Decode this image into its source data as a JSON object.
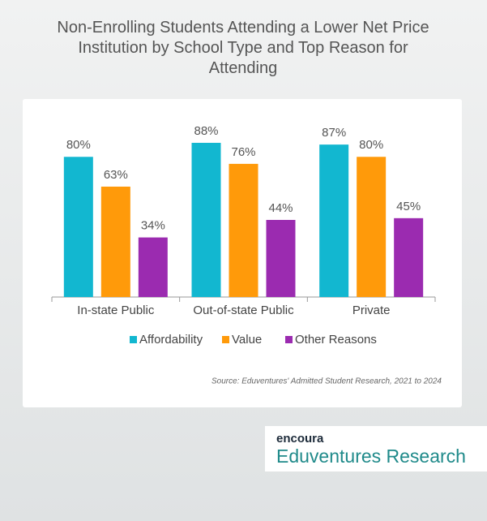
{
  "chart_data": {
    "type": "bar",
    "title": "Non-Enrolling Students Attending a Lower Net Price Institution by School Type and Top Reason for Attending",
    "categories": [
      "In-state Public",
      "Out-of-state Public",
      "Private"
    ],
    "series": [
      {
        "name": "Affordability",
        "color": "#12b7d0",
        "values": [
          80,
          88,
          87
        ],
        "value_labels": [
          "80%",
          "88%",
          "87%"
        ]
      },
      {
        "name": "Value",
        "color": "#ff9a0a",
        "values": [
          63,
          76,
          80
        ],
        "value_labels": [
          "63%",
          "76%",
          "80%"
        ]
      },
      {
        "name": "Other Reasons",
        "color": "#9b2bb0",
        "values": [
          34,
          44,
          45
        ],
        "value_labels": [
          "34%",
          "44%",
          "45%"
        ]
      }
    ],
    "source": "Source: Eduventures' Admitted Student Research, 2021 to 2024"
  },
  "logo": {
    "brand": "encoura",
    "name": "Eduventures",
    "suffix": "Research"
  }
}
